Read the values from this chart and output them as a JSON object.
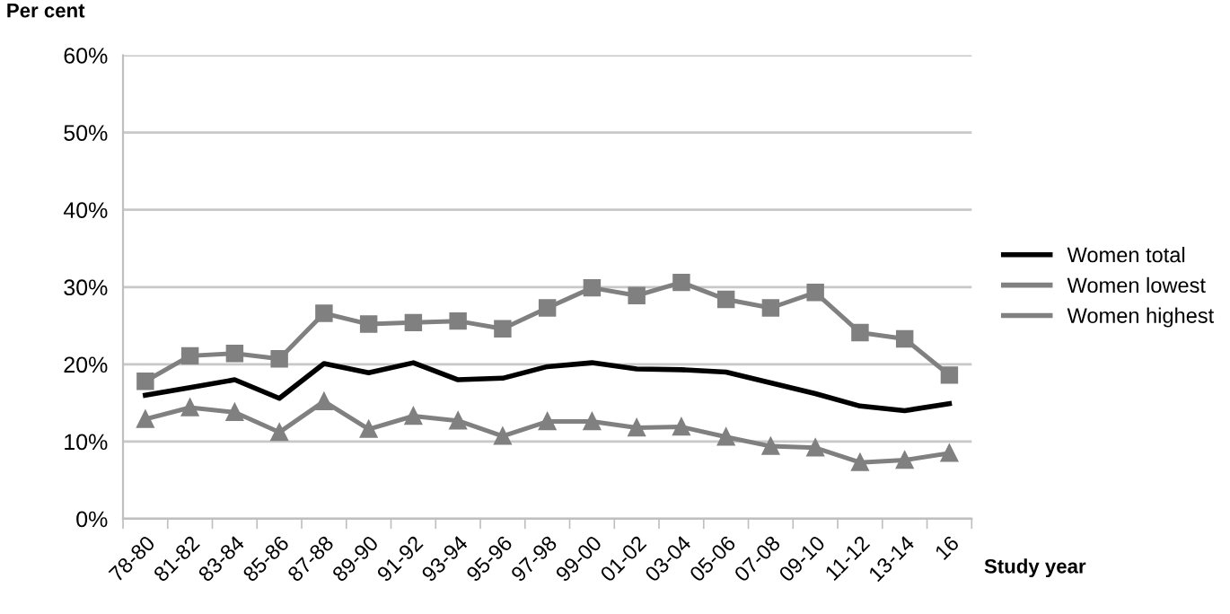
{
  "chart_data": {
    "type": "line",
    "ylabel": "Per cent",
    "xlabel": "Study year",
    "categories": [
      "78-80",
      "81-82",
      "83-84",
      "85-86",
      "87-88",
      "89-90",
      "91-92",
      "93-94",
      "95-96",
      "97-98",
      "99-00",
      "01-02",
      "03-04",
      "05-06",
      "07-08",
      "09-10",
      "11-12",
      "13-14",
      "16"
    ],
    "series": [
      {
        "name": "Women total",
        "color": "#000000",
        "marker": "none",
        "values": [
          16.0,
          17.0,
          18.0,
          15.6,
          20.1,
          18.9,
          20.2,
          18.0,
          18.2,
          19.7,
          20.2,
          19.4,
          19.3,
          19.0,
          17.6,
          16.2,
          14.6,
          14.0,
          14.9
        ]
      },
      {
        "name": "Women lowest",
        "color": "#808080",
        "marker": "square",
        "values": [
          17.8,
          21.1,
          21.4,
          20.7,
          26.6,
          25.2,
          25.4,
          25.6,
          24.6,
          27.3,
          29.9,
          28.9,
          30.6,
          28.4,
          27.3,
          29.3,
          24.1,
          23.3,
          18.6
        ]
      },
      {
        "name": "Women highest",
        "color": "#808080",
        "marker": "triangle",
        "values": [
          12.9,
          14.4,
          13.8,
          11.2,
          15.2,
          11.6,
          13.3,
          12.7,
          10.7,
          12.6,
          12.6,
          11.8,
          11.9,
          10.6,
          9.4,
          9.2,
          7.3,
          7.6,
          8.5
        ]
      }
    ],
    "ylim": [
      0,
      60
    ],
    "yticks": [
      {
        "value": 0,
        "label": "0%"
      },
      {
        "value": 10,
        "label": "10%"
      },
      {
        "value": 20,
        "label": "20%"
      },
      {
        "value": 30,
        "label": "30%"
      },
      {
        "value": 40,
        "label": "40%"
      },
      {
        "value": 50,
        "label": "50%"
      },
      {
        "value": 60,
        "label": "60%"
      }
    ],
    "grid": "y",
    "legend": "right"
  }
}
